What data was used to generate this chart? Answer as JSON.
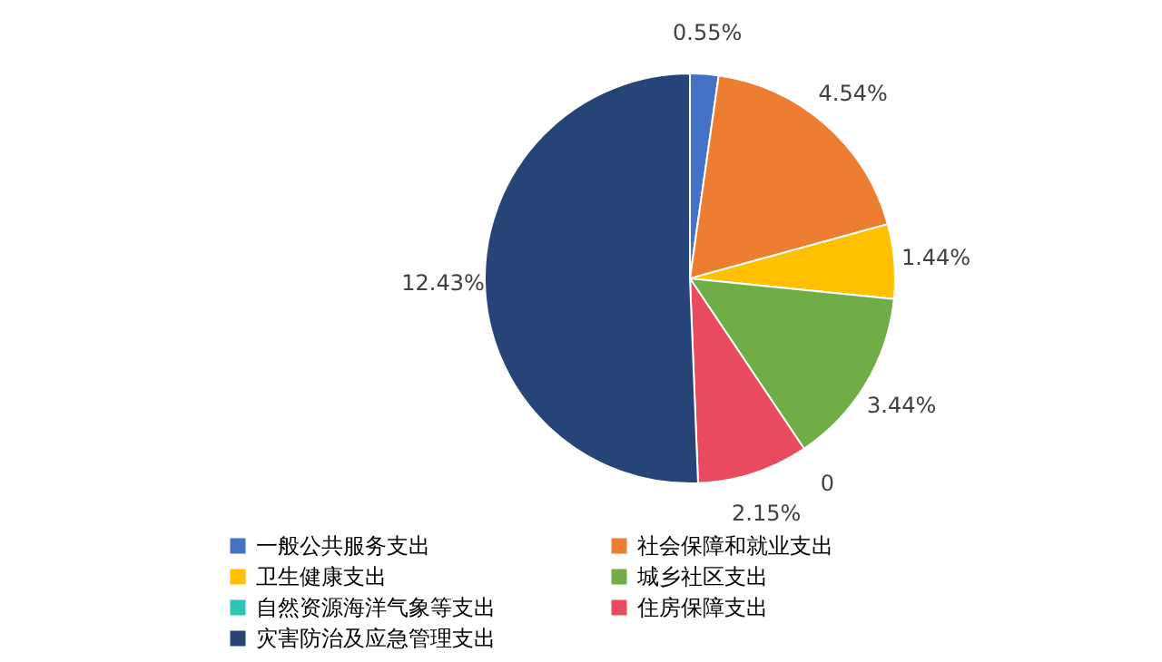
{
  "chart_data": {
    "type": "pie",
    "categories": [
      "一般公共服务支出",
      "社会保障和就业支出",
      "卫生健康支出",
      "城乡社区支出",
      "自然资源海洋气象等支出",
      "住房保障支出",
      "灾害防治及应急管理支出"
    ],
    "values": [
      0.55,
      4.54,
      1.44,
      3.44,
      0,
      2.15,
      12.43
    ],
    "colors": [
      "#4472c4",
      "#ed7d31",
      "#ffc000",
      "#70ad47",
      "#2ec4b6",
      "#e84a5f",
      "#264478"
    ],
    "value_labels": [
      "0.55%",
      "4.54%",
      "1.44%",
      "3.44%",
      "0",
      "2.15%",
      "12.43%"
    ],
    "legend": "bottom"
  }
}
